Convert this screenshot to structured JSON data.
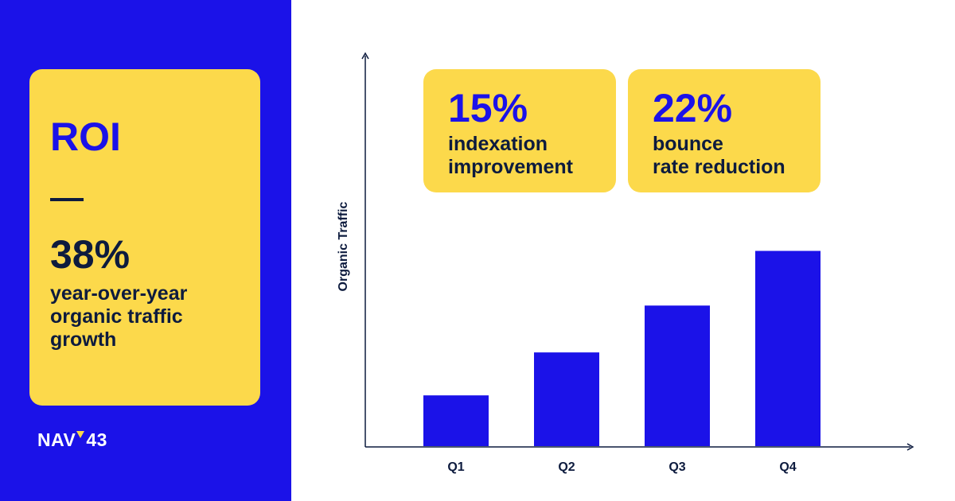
{
  "roi_card": {
    "title": "ROI",
    "dash": "—",
    "value": "38%",
    "description": "year-over-year\norganic traffic\ngrowth"
  },
  "brand": {
    "logo_left": "NAV",
    "logo_right": "43"
  },
  "stats": [
    {
      "value": "15%",
      "label": "indexation\nimprovement"
    },
    {
      "value": "22%",
      "label": "bounce\nrate reduction"
    }
  ],
  "colors": {
    "blue": "#1b12e8",
    "yellow": "#fcd94b",
    "navy": "#0d1b3e"
  },
  "chart_data": {
    "type": "bar",
    "categories": [
      "Q1",
      "Q2",
      "Q3",
      "Q4"
    ],
    "values": [
      13,
      24,
      36,
      50
    ],
    "ylabel": "Organic Traffic",
    "ylim": [
      0,
      100
    ],
    "grid": false
  }
}
